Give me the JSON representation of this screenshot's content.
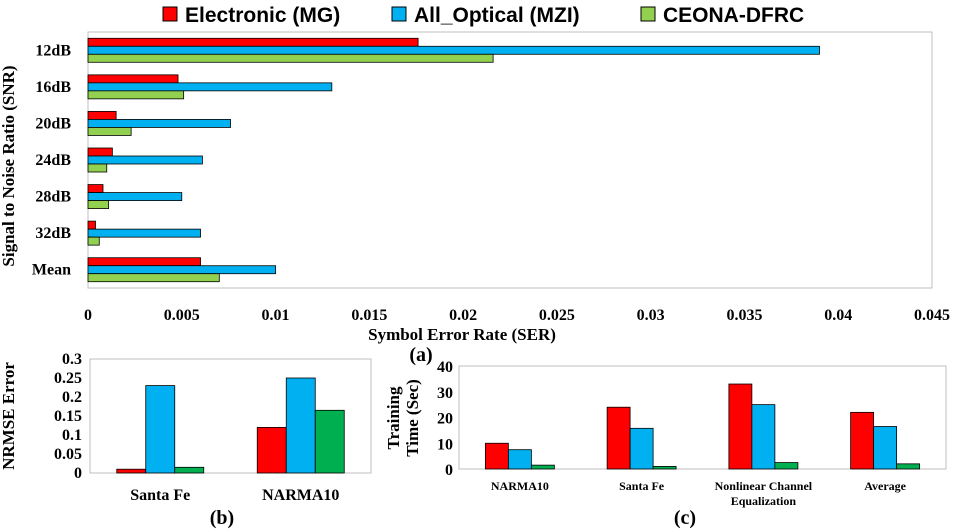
{
  "colors": {
    "series_a": "#ff0000",
    "series_b": "#00b0f0",
    "series_c_a": "#92d050",
    "series_c_bc": "#00b050"
  },
  "legend": {
    "items": [
      "Electronic (MG)",
      "All_Optical (MZI)",
      "CEONA-DFRC"
    ]
  },
  "chart_data": [
    {
      "id": "a",
      "type": "bar",
      "orientation": "horizontal",
      "panel_label": "(a)",
      "categories": [
        "12dB",
        "16dB",
        "20dB",
        "24dB",
        "28dB",
        "32dB",
        "Mean"
      ],
      "series": [
        {
          "name": "Electronic (MG)",
          "values": [
            0.0176,
            0.0048,
            0.0015,
            0.0013,
            0.0008,
            0.0004,
            0.006
          ]
        },
        {
          "name": "All_Optical (MZI)",
          "values": [
            0.039,
            0.013,
            0.0076,
            0.0061,
            0.005,
            0.006,
            0.01
          ]
        },
        {
          "name": "CEONA-DFRC",
          "values": [
            0.0216,
            0.0051,
            0.0023,
            0.001,
            0.0011,
            0.0006,
            0.007
          ]
        }
      ],
      "xlabel": "Symbol Error Rate (SER)",
      "ylabel": "Signal to Noise Ratio (SNR)",
      "xlim": [
        0,
        0.045
      ],
      "xticks": [
        "0",
        "0.005",
        "0.01",
        "0.015",
        "0.02",
        "0.025",
        "0.03",
        "0.035",
        "0.04",
        "0.045"
      ],
      "grid": false
    },
    {
      "id": "b",
      "type": "bar",
      "panel_label": "(b)",
      "categories": [
        "Santa Fe",
        "NARMA10"
      ],
      "series": [
        {
          "name": "Electronic (MG)",
          "values": [
            0.01,
            0.12
          ]
        },
        {
          "name": "All_Optical (MZI)",
          "values": [
            0.23,
            0.25
          ]
        },
        {
          "name": "CEONA-DFRC",
          "values": [
            0.015,
            0.165
          ]
        }
      ],
      "ylabel": "NRMSE Error",
      "ylim": [
        0,
        0.3
      ],
      "yticks": [
        "0",
        "0.05",
        "0.1",
        "0.15",
        "0.2",
        "0.25",
        "0.3"
      ],
      "grid": false
    },
    {
      "id": "c",
      "type": "bar",
      "panel_label": "(c)",
      "categories": [
        "NARMA10",
        "Santa Fe",
        "Nonlinear Channel Equalization",
        "Average"
      ],
      "category_lines": [
        [
          "NARMA10"
        ],
        [
          "Santa Fe"
        ],
        [
          "Nonlinear Channel",
          "Equalization"
        ],
        [
          "Average"
        ]
      ],
      "series": [
        {
          "name": "Electronic (MG)",
          "values": [
            10,
            24,
            33,
            22
          ]
        },
        {
          "name": "All_Optical (MZI)",
          "values": [
            7.5,
            15.8,
            25,
            16.5
          ]
        },
        {
          "name": "CEONA-DFRC",
          "values": [
            1.5,
            1,
            2.5,
            2
          ]
        }
      ],
      "ylabel": "Training Time (Sec)",
      "ylabel_lines": [
        "Training",
        "Time (Sec)"
      ],
      "ylim": [
        0,
        40
      ],
      "yticks": [
        "0",
        "10",
        "20",
        "30",
        "40"
      ],
      "grid": false
    }
  ]
}
